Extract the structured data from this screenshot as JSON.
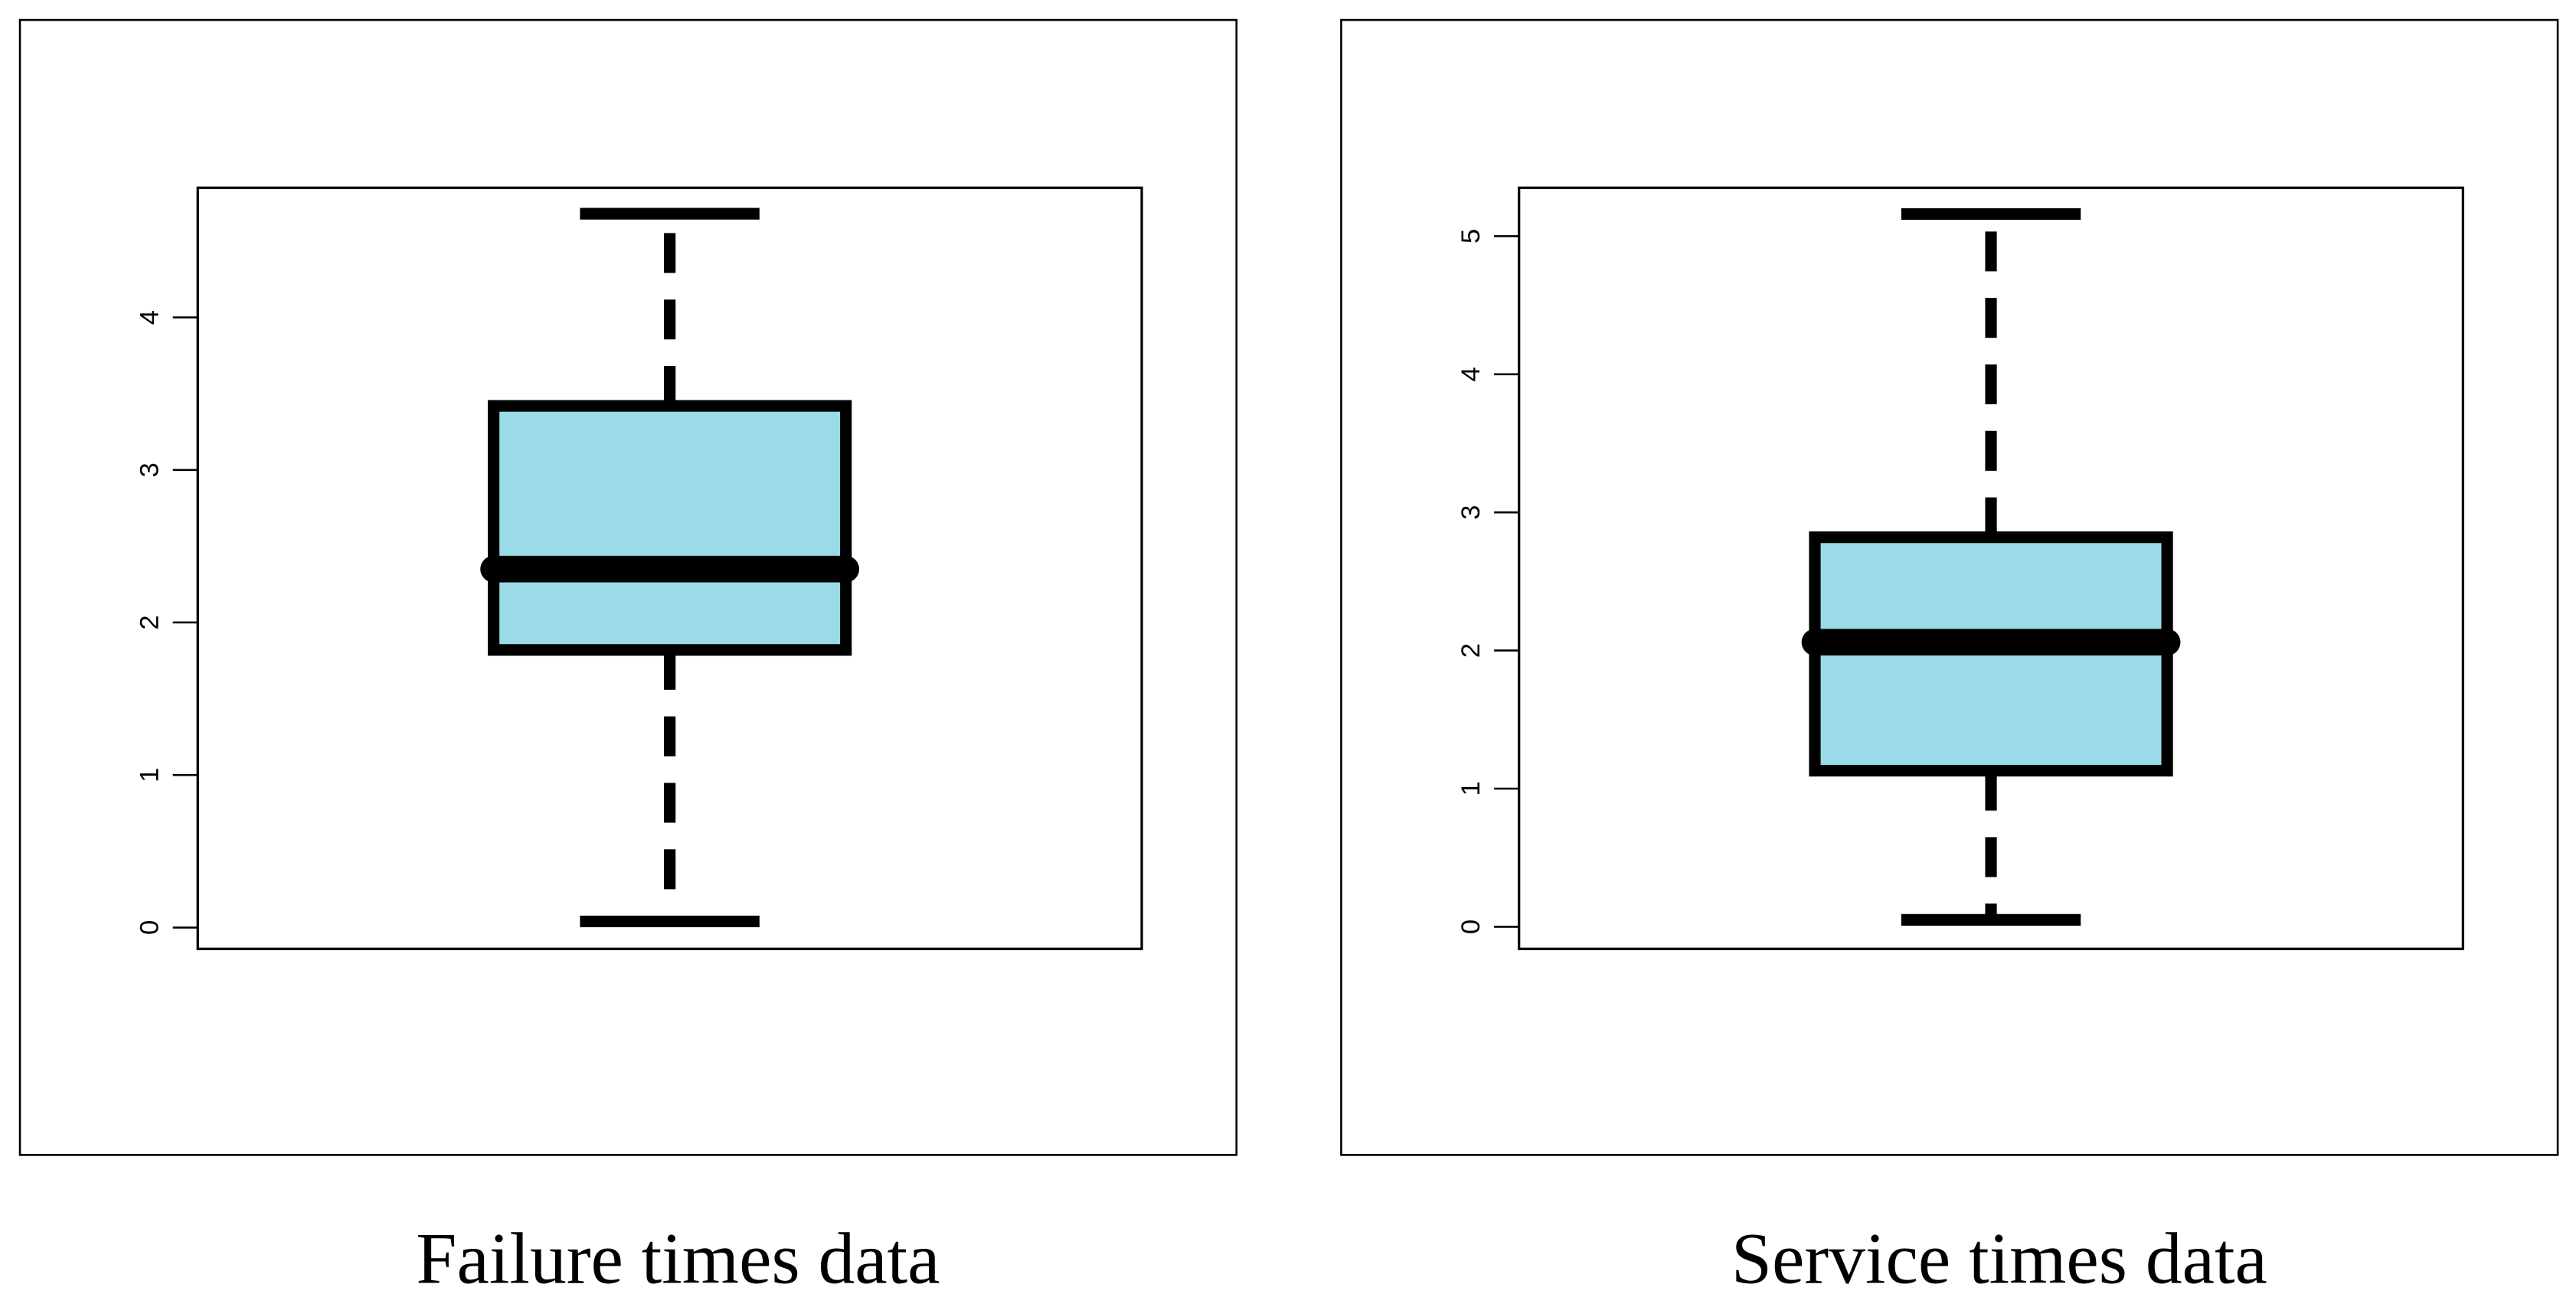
{
  "chart_data": [
    {
      "type": "box",
      "title": "Failure times data",
      "color": "#9bdbe8",
      "stats": {
        "min": 0.04,
        "q1": 1.82,
        "median": 2.35,
        "q3": 3.42,
        "max": 4.68
      },
      "ylim": [
        -0.14,
        4.85
      ],
      "yticks": [
        0,
        1,
        2,
        3,
        4
      ]
    },
    {
      "type": "box",
      "title": "Service times data",
      "color": "#9bdbe8",
      "stats": {
        "min": 0.05,
        "q1": 1.13,
        "median": 2.06,
        "q3": 2.82,
        "max": 5.16
      },
      "ylim": [
        -0.16,
        5.35
      ],
      "yticks": [
        0,
        1,
        2,
        3,
        4,
        5
      ]
    }
  ]
}
